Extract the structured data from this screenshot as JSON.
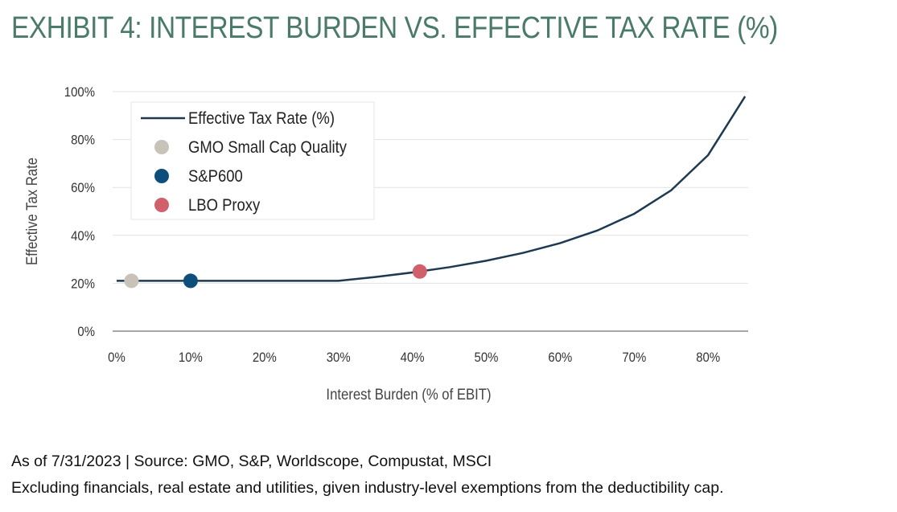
{
  "title": "EXHIBIT 4: INTEREST BURDEN VS. EFFECTIVE TAX RATE (%)",
  "notes": [
    "As of 7/31/2023 | Source: GMO, S&P, Worldscope, Compustat, MSCI",
    "Excluding financials, real estate and utilities, given industry-level exemptions from the deductibility cap."
  ],
  "chart_data": {
    "type": "line",
    "xlabel": "Interest Burden (% of EBIT)",
    "ylabel": "Effective Tax Rate",
    "xlim": [
      0,
      85
    ],
    "ylim": [
      0,
      100
    ],
    "xticks": [
      "0%",
      "10%",
      "20%",
      "30%",
      "40%",
      "50%",
      "60%",
      "70%",
      "80%"
    ],
    "yticks": [
      "0%",
      "20%",
      "40%",
      "60%",
      "80%",
      "100%"
    ],
    "grid": "horizontal",
    "legend_placement": "top-left",
    "series": [
      {
        "name": "Effective Tax Rate (%)",
        "kind": "line",
        "color": "#1d3a52",
        "x": [
          0,
          10,
          20,
          30,
          35,
          40,
          45,
          50,
          55,
          60,
          65,
          70,
          75,
          80,
          85
        ],
        "y": [
          21,
          21,
          21,
          21,
          22.6,
          24.5,
          26.7,
          29.4,
          32.7,
          36.75,
          42,
          49,
          58.8,
          73.5,
          98
        ]
      },
      {
        "name": "GMO Small Cap Quality",
        "kind": "point",
        "color": "#c8c2b8",
        "x": [
          2
        ],
        "y": [
          21
        ]
      },
      {
        "name": "S&P600",
        "kind": "point",
        "color": "#0d4f7a",
        "x": [
          10
        ],
        "y": [
          21
        ]
      },
      {
        "name": "LBO Proxy",
        "kind": "point",
        "color": "#d0606c",
        "x": [
          41
        ],
        "y": [
          24.9
        ]
      }
    ]
  }
}
